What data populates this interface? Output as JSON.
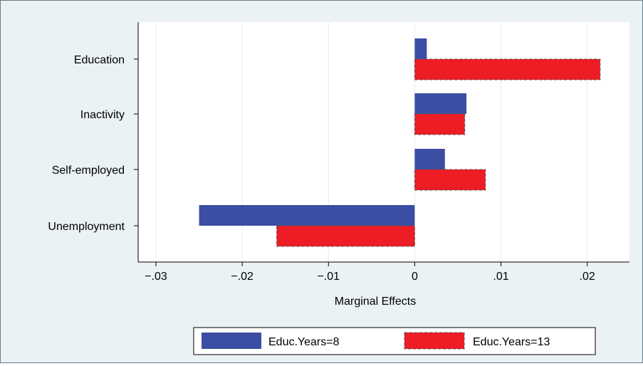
{
  "chart_data": {
    "type": "bar",
    "orientation": "horizontal",
    "categories": [
      "Education",
      "Inactivity",
      "Self-employed",
      "Unemployment"
    ],
    "series": [
      {
        "name": "Educ.Years=8",
        "values": [
          0.0014,
          0.006,
          0.0035,
          -0.025
        ]
      },
      {
        "name": "Educ.Years=13",
        "values": [
          0.0215,
          0.0058,
          0.0082,
          -0.016
        ]
      }
    ],
    "xlabel": "Marginal Effects",
    "ylabel": "",
    "xlim": [
      -0.03,
      0.023
    ],
    "xticks": [
      -0.03,
      -0.02,
      -0.01,
      0,
      0.01,
      0.02
    ],
    "xtick_labels": [
      "−.03",
      "−.02",
      "−.01",
      "0",
      ".01",
      ".02"
    ],
    "grid": true,
    "legend": "bottom",
    "colors": {
      "series_1": "#3b4ea3",
      "series_2": "#ee1c25",
      "outline": "#555555",
      "background": "#eaf2f3",
      "plot_background": "#ffffff"
    }
  }
}
